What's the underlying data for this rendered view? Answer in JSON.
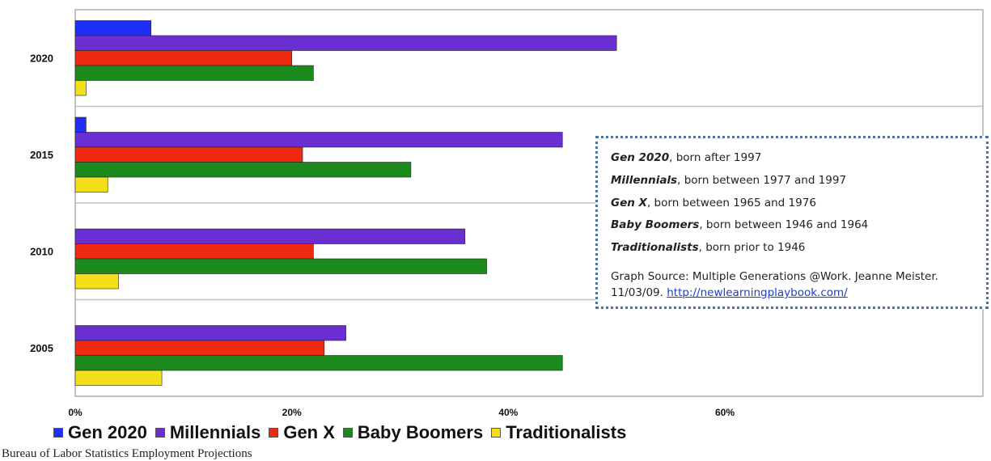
{
  "chart_data": {
    "type": "bar",
    "orientation": "horizontal",
    "categories": [
      "2020",
      "2015",
      "2010",
      "2005"
    ],
    "series": [
      {
        "name": "Gen 2020",
        "color": "#1f2ff5",
        "values": [
          7,
          1,
          0,
          0
        ]
      },
      {
        "name": "Millennials",
        "color": "#6a2fd0",
        "values": [
          50,
          45,
          36,
          25
        ]
      },
      {
        "name": "Gen X",
        "color": "#ee2a10",
        "values": [
          20,
          21,
          22,
          23
        ]
      },
      {
        "name": "Baby Boomers",
        "color": "#1c8a1c",
        "values": [
          22,
          31,
          38,
          45
        ]
      },
      {
        "name": "Traditionalists",
        "color": "#f4e01a",
        "values": [
          1,
          3,
          4,
          8
        ]
      }
    ],
    "xlim": [
      0,
      60
    ],
    "xticks": [
      "0%",
      "20%",
      "40%",
      "60%"
    ],
    "grid": true,
    "legend_position": "bottom"
  },
  "legend": {
    "items": [
      {
        "label": "Gen 2020",
        "color": "#1f2ff5"
      },
      {
        "label": "Millennials",
        "color": "#6a2fd0"
      },
      {
        "label": "Gen X",
        "color": "#ee2a10"
      },
      {
        "label": "Baby Boomers",
        "color": "#1c8a1c"
      },
      {
        "label": "Traditionalists",
        "color": "#f4e01a"
      }
    ]
  },
  "source_text": "Bureau of Labor Statistics Employment Projections",
  "info_box": {
    "definitions": [
      {
        "term": "Gen 2020",
        "text": ", born after 1997"
      },
      {
        "term": "Millennials",
        "text": ", born between 1977 and 1997"
      },
      {
        "term": "Gen X",
        "text": ", born between 1965 and 1976"
      },
      {
        "term": "Baby Boomers",
        "text": ", born between 1946 and 1964"
      },
      {
        "term": "Traditionalists",
        "text": ", born prior to 1946"
      }
    ],
    "source_prefix": "Graph Source: Multiple Generations @Work.  Jeanne Meister. 11/03/09.",
    "source_link": "http://newlearningplaybook.com/"
  }
}
